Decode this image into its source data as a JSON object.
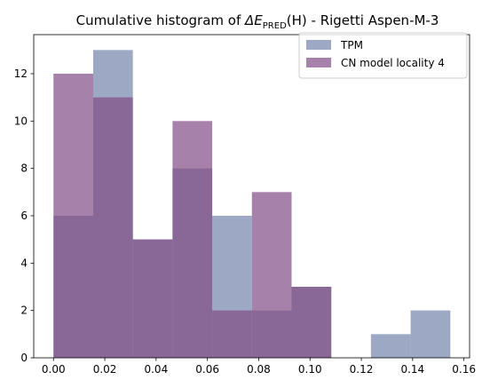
{
  "chart_data": {
    "type": "bar",
    "title": {
      "prefix": "Cumulative histogram of ",
      "symbol": "ΔE",
      "subscript": "PRED",
      "suffix": "(H) -  Rigetti Aspen-M-3"
    },
    "xlabel": "",
    "ylabel": "",
    "xlim": [
      -0.0077,
      0.1622
    ],
    "ylim": [
      0,
      13.65
    ],
    "xticks": [
      0.0,
      0.02,
      0.04,
      0.06,
      0.08,
      0.1,
      0.12,
      0.14,
      0.16
    ],
    "xtick_labels": [
      "0.00",
      "0.02",
      "0.04",
      "0.06",
      "0.08",
      "0.10",
      "0.12",
      "0.14",
      "0.16"
    ],
    "yticks": [
      0,
      2,
      4,
      6,
      8,
      10,
      12
    ],
    "ytick_labels": [
      "0",
      "2",
      "4",
      "6",
      "8",
      "10",
      "12"
    ],
    "grid": false,
    "legend_position": "top-right",
    "series": [
      {
        "name": "TPM",
        "color": "#7385ab",
        "opacity": 0.7,
        "bin_edges": [
          0.0,
          0.01547,
          0.03094,
          0.04641,
          0.06188,
          0.07735,
          0.09282,
          0.10829,
          0.12376,
          0.13923,
          0.1547
        ],
        "counts": [
          6,
          13,
          5,
          8,
          6,
          2,
          3,
          0,
          1,
          2
        ]
      },
      {
        "name": "CN model locality 4",
        "color": "#804c85",
        "opacity": 0.7,
        "bin_edges": [
          0.0,
          0.01547,
          0.03094,
          0.04641,
          0.06188,
          0.07735,
          0.09282,
          0.10829
        ],
        "counts": [
          12,
          11,
          5,
          10,
          2,
          7,
          3
        ]
      }
    ]
  }
}
